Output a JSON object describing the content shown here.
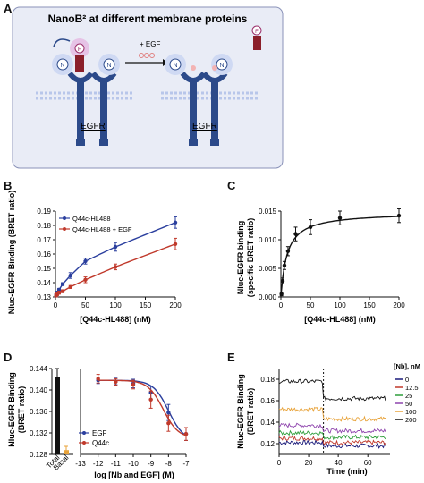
{
  "panel_a": {
    "letter": "A",
    "title": "NanoB² at different membrane proteins",
    "arrow_label": "+ EGF",
    "receptor_label_left": "EGFR",
    "receptor_label_right": "EGFR",
    "nb_letter": "N",
    "ligand_letter": "F"
  },
  "chart_data": [
    {
      "panel": "B",
      "type": "line",
      "xlabel": "[Q44c-HL488] (nM)",
      "ylabel": "Nluc-EGFR Binding (BRET ratio)",
      "xlim": [
        0,
        200
      ],
      "ylim": [
        0.13,
        0.19
      ],
      "xticks": [
        0,
        50,
        100,
        150,
        200
      ],
      "yticks": [
        0.13,
        0.14,
        0.15,
        0.16,
        0.17,
        0.18,
        0.19
      ],
      "ytick_labels": [
        "0.13",
        "0.14",
        "0.15",
        "0.16",
        "0.17",
        "0.18",
        "0.19"
      ],
      "legend": "top-left",
      "series": [
        {
          "name": "Q44c-HL488",
          "color": "#2b3f9e",
          "x": [
            1,
            3,
            6,
            12,
            25,
            50,
            100,
            200
          ],
          "y": [
            0.131,
            0.133,
            0.135,
            0.139,
            0.145,
            0.155,
            0.165,
            0.182
          ],
          "err": [
            0.001,
            0.001,
            0.001,
            0.001,
            0.002,
            0.002,
            0.003,
            0.004
          ]
        },
        {
          "name": "Q44c-HL488 + EGF",
          "color": "#c0392b",
          "x": [
            1,
            3,
            6,
            12,
            25,
            50,
            100,
            200
          ],
          "y": [
            0.131,
            0.132,
            0.133,
            0.134,
            0.137,
            0.142,
            0.151,
            0.167
          ],
          "err": [
            0.001,
            0.001,
            0.001,
            0.001,
            0.001,
            0.002,
            0.002,
            0.004
          ]
        }
      ]
    },
    {
      "panel": "C",
      "type": "line",
      "xlabel": "[Q44c-HL488] (nM)",
      "ylabel": "Nluc-EGFR binding (specific BRET ratio)",
      "xlim": [
        0,
        200
      ],
      "ylim": [
        0,
        0.015
      ],
      "xticks": [
        0,
        50,
        100,
        150,
        200
      ],
      "yticks": [
        0,
        0.005,
        0.01,
        0.015
      ],
      "ytick_labels": [
        "0.000",
        "0.005",
        "0.010",
        "0.015"
      ],
      "series": [
        {
          "color": "#111111",
          "x": [
            1,
            3,
            6,
            12,
            25,
            50,
            100,
            200
          ],
          "y": [
            0.0005,
            0.0028,
            0.0055,
            0.008,
            0.011,
            0.0122,
            0.0138,
            0.0142
          ],
          "err": [
            0.0003,
            0.0005,
            0.0007,
            0.0008,
            0.0012,
            0.0013,
            0.0012,
            0.0012
          ]
        }
      ]
    },
    {
      "panel": "D",
      "type": "bar",
      "ylabel": "Nluc-EGFR Binding (BRET ratio)",
      "ylim": [
        0.128,
        0.144
      ],
      "yticks": [
        0.128,
        0.132,
        0.136,
        0.14,
        0.144
      ],
      "ytick_labels": [
        "0.128",
        "0.132",
        "0.136",
        "0.140",
        "0.144"
      ],
      "categories": [
        "Total",
        "Basal"
      ],
      "values": [
        0.1425,
        0.1288
      ],
      "err": [
        0.0015,
        0.0007
      ],
      "colors": [
        "#111111",
        "#e8a33a"
      ]
    },
    {
      "panel": "D",
      "type": "line",
      "xlabel": "log [Nb and EGF] (M)",
      "xlim": [
        -13,
        -7
      ],
      "ylim": [
        0.128,
        0.144
      ],
      "xticks": [
        -13,
        -12,
        -11,
        -10,
        -9,
        -8,
        -7
      ],
      "legend": "bottom-left",
      "series": [
        {
          "name": "EGF",
          "color": "#2b3f9e",
          "x": [
            -12,
            -11,
            -10,
            -9,
            -8,
            -7
          ],
          "y": [
            0.1418,
            0.1416,
            0.1412,
            0.1395,
            0.1358,
            0.1318
          ],
          "err": [
            0.0006,
            0.0006,
            0.0008,
            0.0012,
            0.0015,
            0.0012
          ]
        },
        {
          "name": "Q44c",
          "color": "#c0392b",
          "x": [
            -12,
            -11,
            -10,
            -9,
            -8,
            -7
          ],
          "y": [
            0.1421,
            0.1415,
            0.141,
            0.1382,
            0.1338,
            0.1318
          ],
          "err": [
            0.0008,
            0.0006,
            0.0008,
            0.0016,
            0.0015,
            0.0012
          ]
        }
      ]
    },
    {
      "panel": "E",
      "type": "scatter",
      "xlabel": "Time (min)",
      "ylabel": "Nluc-EGFR Binding (BRET ratio)",
      "xlim": [
        0,
        75
      ],
      "ylim": [
        0.11,
        0.19
      ],
      "xticks": [
        0,
        20,
        40,
        60
      ],
      "yticks": [
        0.12,
        0.14,
        0.16,
        0.18
      ],
      "ytick_labels": [
        "0.12",
        "0.14",
        "0.16",
        "0.18"
      ],
      "addition_time": 30,
      "legend_title": "[Nb], nM",
      "legend": "right",
      "series": [
        {
          "name": "0",
          "color": "#1a1a7a",
          "before": 0.121,
          "after": 0.118
        },
        {
          "name": "12.5",
          "color": "#c0392b",
          "before": 0.125,
          "after": 0.121
        },
        {
          "name": "25",
          "color": "#2e9e3a",
          "before": 0.13,
          "after": 0.126
        },
        {
          "name": "50",
          "color": "#8e44ad",
          "before": 0.137,
          "after": 0.132
        },
        {
          "name": "100",
          "color": "#e8a33a",
          "before": 0.152,
          "after": 0.143
        },
        {
          "name": "200",
          "color": "#111111",
          "before": 0.178,
          "after": 0.162
        }
      ]
    }
  ]
}
